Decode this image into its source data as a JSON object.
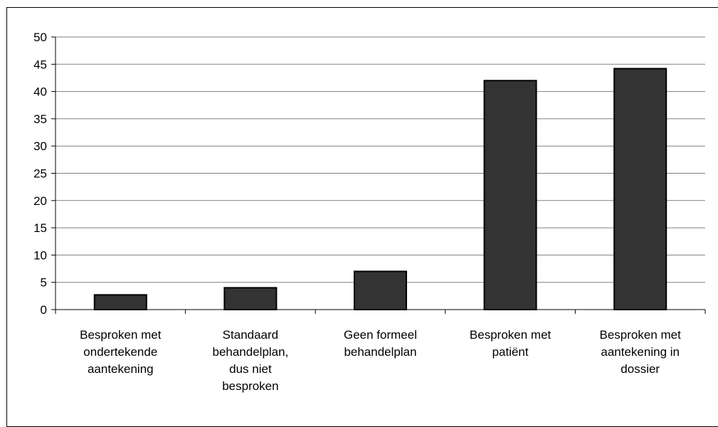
{
  "chart_data": {
    "type": "bar",
    "title": "",
    "xlabel": "",
    "ylabel": "",
    "ylim": [
      0,
      50
    ],
    "yticks": [
      0,
      5,
      10,
      15,
      20,
      25,
      30,
      35,
      40,
      45,
      50
    ],
    "grid": true,
    "legend": "none",
    "categories": [
      [
        "Besproken met",
        "ondertekende",
        "aantekening"
      ],
      [
        "Standaard",
        "behandelplan,",
        "dus niet",
        "besproken"
      ],
      [
        "Geen formeel",
        "behandelplan"
      ],
      [
        "Besproken met",
        "patiënt"
      ],
      [
        "Besproken met",
        "aantekening in",
        "dossier"
      ]
    ],
    "values": [
      2.7,
      4.0,
      7.0,
      42.0,
      44.2
    ],
    "colors": {
      "bar": "#333333",
      "bar_edge": "#000000",
      "grid": "#808080",
      "axis": "#000000"
    }
  }
}
